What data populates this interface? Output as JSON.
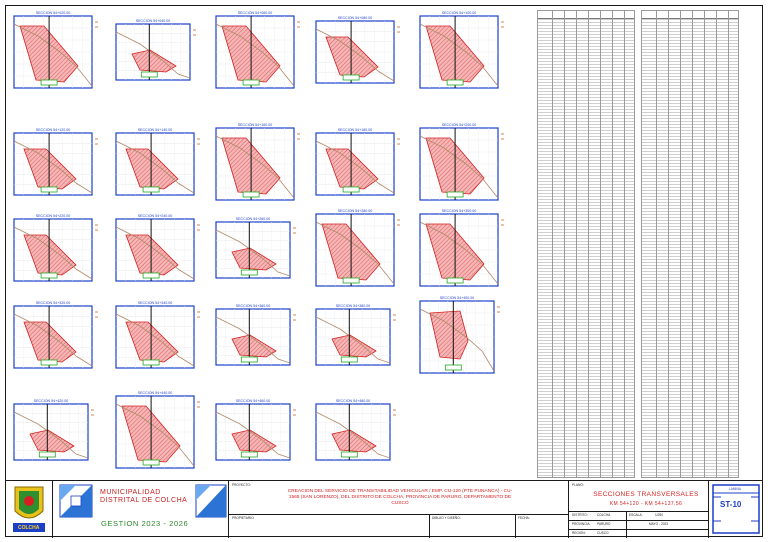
{
  "sections": [
    {
      "label": "SECCION 54+020.00",
      "style": "tall"
    },
    {
      "label": "SECCION 54+040.00",
      "style": "flat"
    },
    {
      "label": "SECCION 54+060.00",
      "style": "tall"
    },
    {
      "label": "SECCION 54+080.00",
      "style": "mid"
    },
    {
      "label": "SECCION 54+100.00",
      "style": "tall"
    },
    {
      "label": "SECCION 54+120.00",
      "style": "mid"
    },
    {
      "label": "SECCION 54+140.00",
      "style": "mid"
    },
    {
      "label": "SECCION 54+160.00",
      "style": "tall"
    },
    {
      "label": "SECCION 54+180.00",
      "style": "mid"
    },
    {
      "label": "SECCION 54+200.00",
      "style": "tall"
    },
    {
      "label": "SECCION 54+220.00",
      "style": "mid"
    },
    {
      "label": "SECCION 54+240.00",
      "style": "mid"
    },
    {
      "label": "SECCION 54+260.00",
      "style": "flat"
    },
    {
      "label": "SECCION 54+280.00",
      "style": "tall"
    },
    {
      "label": "SECCION 54+300.00",
      "style": "tall"
    },
    {
      "label": "SECCION 54+320.00",
      "style": "mid"
    },
    {
      "label": "SECCION 54+340.00",
      "style": "mid"
    },
    {
      "label": "SECCION 54+360.00",
      "style": "flat"
    },
    {
      "label": "SECCION 54+380.00",
      "style": "flat"
    },
    {
      "label": "SECCION 54+400.00",
      "style": "box"
    },
    {
      "label": "SECCION 54+420.00",
      "style": "flat"
    },
    {
      "label": "SECCION 54+440.00",
      "style": "tall"
    },
    {
      "label": "SECCION 54+460.00",
      "style": "flat"
    },
    {
      "label": "SECCION 54+480.00",
      "style": "flat"
    }
  ],
  "title_block": {
    "municipality": "MUNICIPALIDAD DISTRITAL DE COLCHA",
    "logo_text": "COLCHA",
    "gestion": "GESTION 2023 - 2026",
    "proyecto_label": "PROYECTO:",
    "project_text": "CREACION DEL SERVICIO DE TRANSITABILIDAD VEHICULAR / EMP. CU-120 (PTE PUNANCA) - CU-1565 (SAN LORENZO), DEL DISTRITO DE COLCHA, PROVINCIA DE PARURO, DEPARTAMENTO DE CUSCO",
    "propietario_label": "PROPIETARIO:",
    "dibujo_label": "DIBUJO Y DISEÑO:",
    "fecha_label": "FECHA:",
    "plano_label": "PLANO:",
    "sheet_title": "SECCIONES TRANSVERSALES",
    "sheet_subtitle": "KM 54+120 - KM 54+137.56",
    "distrito_label": "DISTRITO:",
    "distrito_value": "COLCHA",
    "provincia_label": "PROVINCIA:",
    "provincia_value": "PARURO",
    "region_label": "REGION:",
    "region_value": "CUSCO",
    "escala_label": "ESCALA:",
    "escala_value": "1/250",
    "fecha_value": "MAYO - 2023",
    "lamina_label": "LAMINA",
    "sheet_number": "ST-10"
  },
  "colors": {
    "frame": "#1c3fc8",
    "fill": "#f2a8a8",
    "fill_stroke": "#d42020",
    "centerline": "#111111",
    "label_box": "#22aa22",
    "terrain": "#b08a6a"
  }
}
